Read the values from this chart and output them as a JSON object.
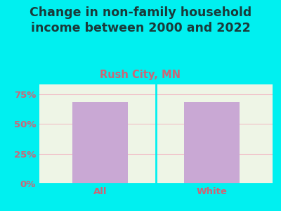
{
  "categories": [
    "All",
    "White"
  ],
  "values": [
    68.5,
    68.5
  ],
  "bar_color": "#c9a8d4",
  "title": "Change in non-family household\nincome between 2000 and 2022",
  "subtitle": "Rush City, MN",
  "title_color": "#1a3a3a",
  "subtitle_color": "#cc6677",
  "background_color": "#00f0f0",
  "plot_bg_color": "#eef5e6",
  "ytick_labels": [
    "0%",
    "25%",
    "50%",
    "75%"
  ],
  "ytick_values": [
    0,
    25,
    50,
    75
  ],
  "ylim": [
    0,
    83
  ],
  "grid_color": "#f0c0c8",
  "tick_color": "#cc6677",
  "title_fontsize": 12.5,
  "subtitle_fontsize": 10.5,
  "tick_fontsize": 9.5,
  "bar_width": 0.5,
  "xlim": [
    -0.55,
    1.55
  ]
}
